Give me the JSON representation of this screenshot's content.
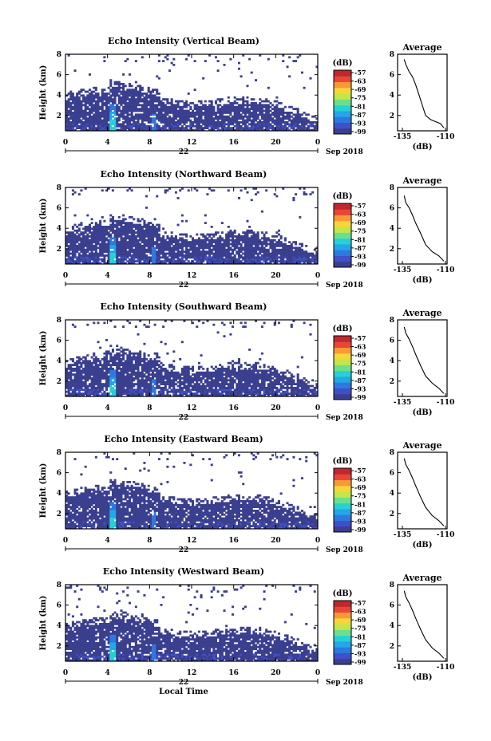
{
  "chart_data": [
    {
      "type": "heatmap",
      "title": "Echo Intensity (Vertical Beam)",
      "ylabel": "Height (km)",
      "x_ticks": [
        "0",
        "4",
        "8",
        "12",
        "16",
        "20",
        "0"
      ],
      "day_label": "22",
      "date_label": "Sep 2018",
      "y_ticks": [
        "2",
        "4",
        "6",
        "8"
      ],
      "xlim": [
        0,
        24
      ],
      "ylim": [
        0.5,
        8
      ],
      "colorbar": {
        "unit": "(dB)",
        "ticks": [
          "-57",
          "-63",
          "-69",
          "-75",
          "-81",
          "-87",
          "-93",
          "-99"
        ]
      },
      "profile": {
        "title": "Average",
        "xlabel": "(dB)",
        "x_ticks": [
          "-135",
          "-110"
        ],
        "y_ticks": [
          "2",
          "4",
          "6",
          "8"
        ],
        "points": [
          [
            -110,
            0.8
          ],
          [
            -112,
            1.2
          ],
          [
            -115,
            1.4
          ],
          [
            -118,
            1.6
          ],
          [
            -121,
            2.0
          ],
          [
            -123,
            3.0
          ],
          [
            -125,
            4.0
          ],
          [
            -127,
            5.0
          ],
          [
            -129,
            5.8
          ],
          [
            -131,
            6.3
          ],
          [
            -133,
            7.0
          ],
          [
            -134,
            7.5
          ]
        ]
      }
    },
    {
      "type": "heatmap",
      "title": "Echo Intensity (Northward Beam)",
      "ylabel": "Height (km)",
      "x_ticks": [
        "0",
        "4",
        "8",
        "12",
        "16",
        "20",
        "0"
      ],
      "day_label": "22",
      "date_label": "Sep 2018",
      "y_ticks": [
        "2",
        "4",
        "6",
        "8"
      ],
      "xlim": [
        0,
        24
      ],
      "ylim": [
        0.5,
        8
      ],
      "colorbar": {
        "unit": "(dB)",
        "ticks": [
          "-57",
          "-63",
          "-69",
          "-75",
          "-81",
          "-87",
          "-93",
          "-99"
        ]
      },
      "profile": {
        "title": "Average",
        "xlabel": "(dB)",
        "x_ticks": [
          "-135",
          "-110"
        ],
        "y_ticks": [
          "2",
          "4",
          "6",
          "8"
        ],
        "points": [
          [
            -110,
            0.8
          ],
          [
            -113,
            1.3
          ],
          [
            -117,
            1.7
          ],
          [
            -121,
            2.4
          ],
          [
            -124,
            3.5
          ],
          [
            -127,
            4.5
          ],
          [
            -129,
            5.3
          ],
          [
            -131,
            6.0
          ],
          [
            -133,
            6.5
          ],
          [
            -134,
            7.2
          ]
        ]
      }
    },
    {
      "type": "heatmap",
      "title": "Echo Intensity (Southward Beam)",
      "ylabel": "Height (km)",
      "x_ticks": [
        "0",
        "4",
        "8",
        "12",
        "16",
        "20",
        "0"
      ],
      "day_label": "22",
      "date_label": "Sep 2018",
      "y_ticks": [
        "2",
        "4",
        "6",
        "8"
      ],
      "xlim": [
        0,
        24
      ],
      "ylim": [
        0.5,
        8
      ],
      "colorbar": {
        "unit": "(dB)",
        "ticks": [
          "-57",
          "-63",
          "-69",
          "-75",
          "-81",
          "-87",
          "-93",
          "-99"
        ]
      },
      "profile": {
        "title": "Average",
        "xlabel": "(dB)",
        "x_ticks": [
          "-135",
          "-110"
        ],
        "y_ticks": [
          "2",
          "4",
          "6",
          "8"
        ],
        "points": [
          [
            -110,
            0.8
          ],
          [
            -113,
            1.3
          ],
          [
            -117,
            1.8
          ],
          [
            -121,
            2.5
          ],
          [
            -124,
            3.5
          ],
          [
            -127,
            4.6
          ],
          [
            -129,
            5.4
          ],
          [
            -131,
            6.1
          ],
          [
            -133,
            6.7
          ],
          [
            -134,
            7.3
          ]
        ]
      }
    },
    {
      "type": "heatmap",
      "title": "Echo Intensity (Eastward Beam)",
      "ylabel": "Height (km)",
      "x_ticks": [
        "0",
        "4",
        "8",
        "12",
        "16",
        "20",
        "0"
      ],
      "day_label": "22",
      "date_label": "Sep 2018",
      "y_ticks": [
        "2",
        "4",
        "6",
        "8"
      ],
      "xlim": [
        0,
        24
      ],
      "ylim": [
        0.5,
        8
      ],
      "colorbar": {
        "unit": "(dB)",
        "ticks": [
          "-57",
          "-63",
          "-69",
          "-75",
          "-81",
          "-87",
          "-93",
          "-99"
        ]
      },
      "profile": {
        "title": "Average",
        "xlabel": "(dB)",
        "x_ticks": [
          "-135",
          "-110"
        ],
        "y_ticks": [
          "2",
          "4",
          "6",
          "8"
        ],
        "points": [
          [
            -110,
            0.8
          ],
          [
            -113,
            1.3
          ],
          [
            -117,
            1.8
          ],
          [
            -121,
            2.6
          ],
          [
            -124,
            3.6
          ],
          [
            -127,
            4.7
          ],
          [
            -129,
            5.5
          ],
          [
            -131,
            6.2
          ],
          [
            -133,
            6.8
          ],
          [
            -134,
            7.4
          ]
        ]
      }
    },
    {
      "type": "heatmap",
      "title": "Echo Intensity (Westward Beam)",
      "ylabel": "Height (km)",
      "xlabel": "Local Time",
      "x_ticks": [
        "0",
        "4",
        "8",
        "12",
        "16",
        "20",
        "0"
      ],
      "day_label": "22",
      "date_label": "Sep 2018",
      "y_ticks": [
        "2",
        "4",
        "6",
        "8"
      ],
      "xlim": [
        0,
        24
      ],
      "ylim": [
        0.5,
        8
      ],
      "colorbar": {
        "unit": "(dB)",
        "ticks": [
          "-57",
          "-63",
          "-69",
          "-75",
          "-81",
          "-87",
          "-93",
          "-99"
        ]
      },
      "profile": {
        "title": "Average",
        "xlabel": "(dB)",
        "x_ticks": [
          "-135",
          "-110"
        ],
        "y_ticks": [
          "2",
          "4",
          "6",
          "8"
        ],
        "points": [
          [
            -110,
            0.8
          ],
          [
            -113,
            1.3
          ],
          [
            -117,
            1.8
          ],
          [
            -121,
            2.6
          ],
          [
            -124,
            3.6
          ],
          [
            -127,
            4.7
          ],
          [
            -129,
            5.5
          ],
          [
            -131,
            6.2
          ],
          [
            -133,
            6.8
          ],
          [
            -134,
            7.4
          ]
        ]
      }
    }
  ],
  "colors": {
    "scale": [
      "#3b3f8f",
      "#3f50c8",
      "#2d79e0",
      "#23a7e6",
      "#28d0d6",
      "#6be08c",
      "#c5e54a",
      "#f6d63a",
      "#f79a35",
      "#e9463a",
      "#c1272d"
    ]
  }
}
